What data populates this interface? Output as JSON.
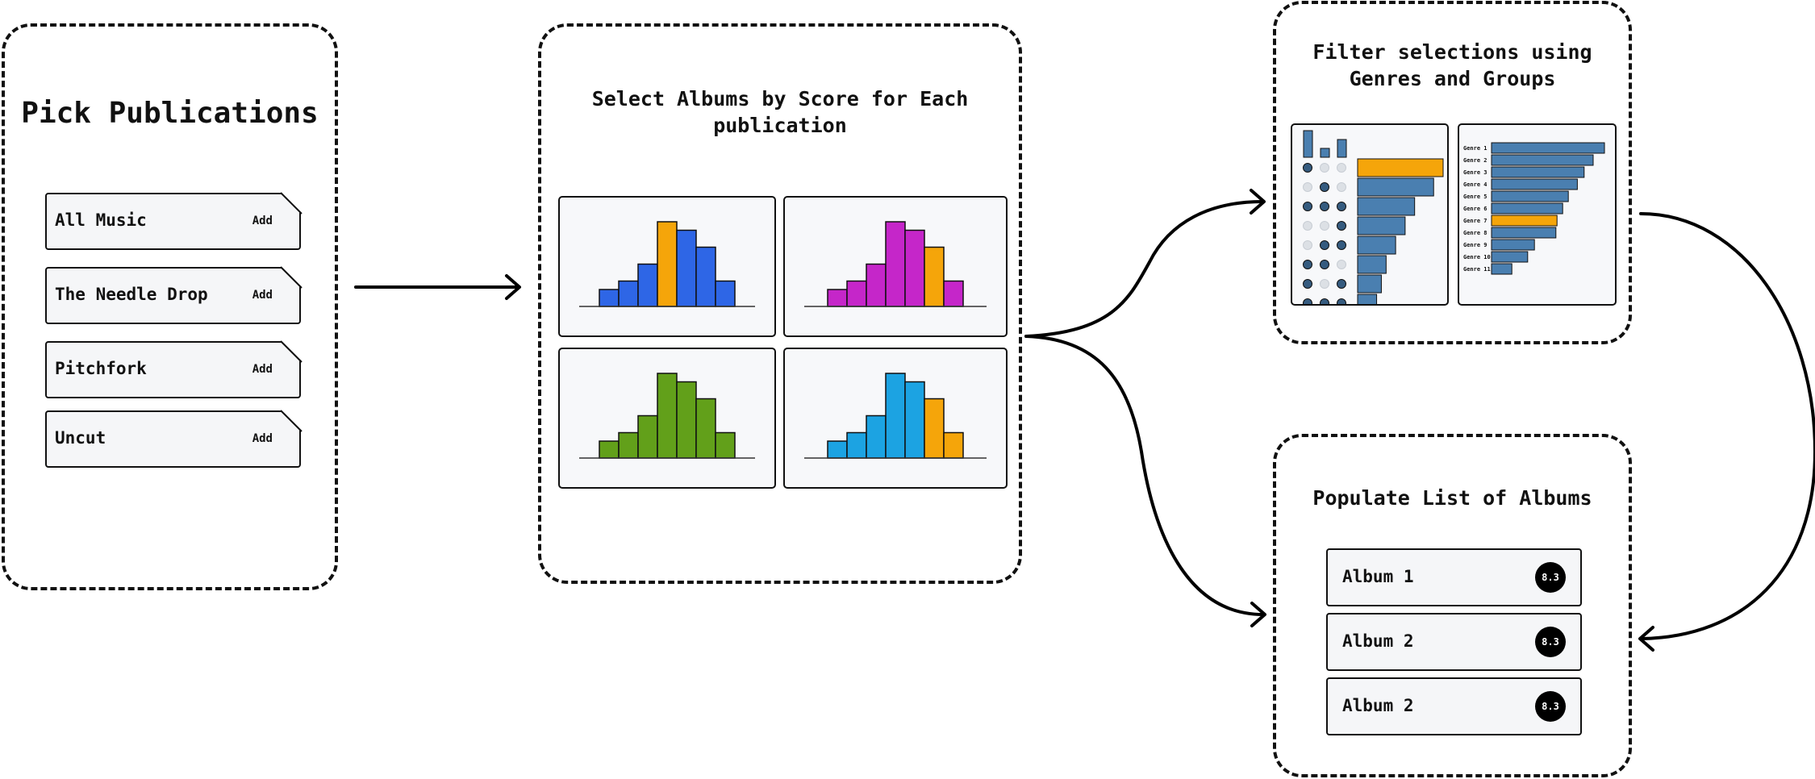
{
  "panels": {
    "pick": {
      "title": "Pick Publications"
    },
    "select": {
      "title_line1": "Select Albums by Score for Each",
      "title_line2": "publication"
    },
    "filter": {
      "title_line1": "Filter selections using",
      "title_line2": "Genres and Groups"
    },
    "populate": {
      "title": "Populate List of Albums"
    }
  },
  "publications": [
    {
      "name": "All Music",
      "action": "Add"
    },
    {
      "name": "The Needle Drop",
      "action": "Add"
    },
    {
      "name": "Pitchfork",
      "action": "Add"
    },
    {
      "name": "Uncut",
      "action": "Add"
    }
  ],
  "colors": {
    "highlight": "#F5A50A",
    "blue": "#2E66E6",
    "magenta": "#C526C9",
    "green": "#62A01A",
    "cyan": "#1CA3E2",
    "steel": "#4A7FB0"
  },
  "histograms": [
    {
      "color": "#2E66E6",
      "values": [
        2,
        3,
        5,
        10,
        9,
        7,
        3
      ],
      "highlight": [
        3
      ]
    },
    {
      "color": "#C526C9",
      "values": [
        2,
        3,
        5,
        10,
        9,
        7,
        3
      ],
      "highlight": [
        5
      ]
    },
    {
      "color": "#62A01A",
      "values": [
        2,
        3,
        5,
        10,
        9,
        7,
        3
      ],
      "highlight": []
    },
    {
      "color": "#1CA3E2",
      "values": [
        2,
        3,
        5,
        10,
        9,
        7,
        3
      ],
      "highlight": [
        5,
        6
      ]
    }
  ],
  "upset": {
    "set_sizes": [
      3,
      1,
      2
    ],
    "matrix": [
      [
        1,
        0,
        0
      ],
      [
        0,
        1,
        0
      ],
      [
        1,
        1,
        1
      ],
      [
        0,
        0,
        1
      ],
      [
        0,
        1,
        1
      ],
      [
        1,
        1,
        0
      ],
      [
        1,
        0,
        1
      ],
      [
        1,
        1,
        1
      ]
    ],
    "bars": [
      9,
      8,
      6,
      5,
      4,
      3,
      2.5,
      2
    ],
    "highlight_index": 0
  },
  "genres": {
    "labels": [
      "Genre 1",
      "Genre 2",
      "Genre 3",
      "Genre 4",
      "Genre 5",
      "Genre 6",
      "Genre 7",
      "Genre 8",
      "Genre 9",
      "Genre 10",
      "Genre 11"
    ],
    "values": [
      10,
      9,
      8.2,
      7.6,
      6.8,
      6.3,
      5.8,
      5.7,
      3.8,
      3.2,
      1.8
    ],
    "highlight_index": 6
  },
  "albums": [
    {
      "name": "Album 1",
      "score": "8.3"
    },
    {
      "name": "Album 2",
      "score": "8.3"
    },
    {
      "name": "Album 2",
      "score": "8.3"
    }
  ]
}
